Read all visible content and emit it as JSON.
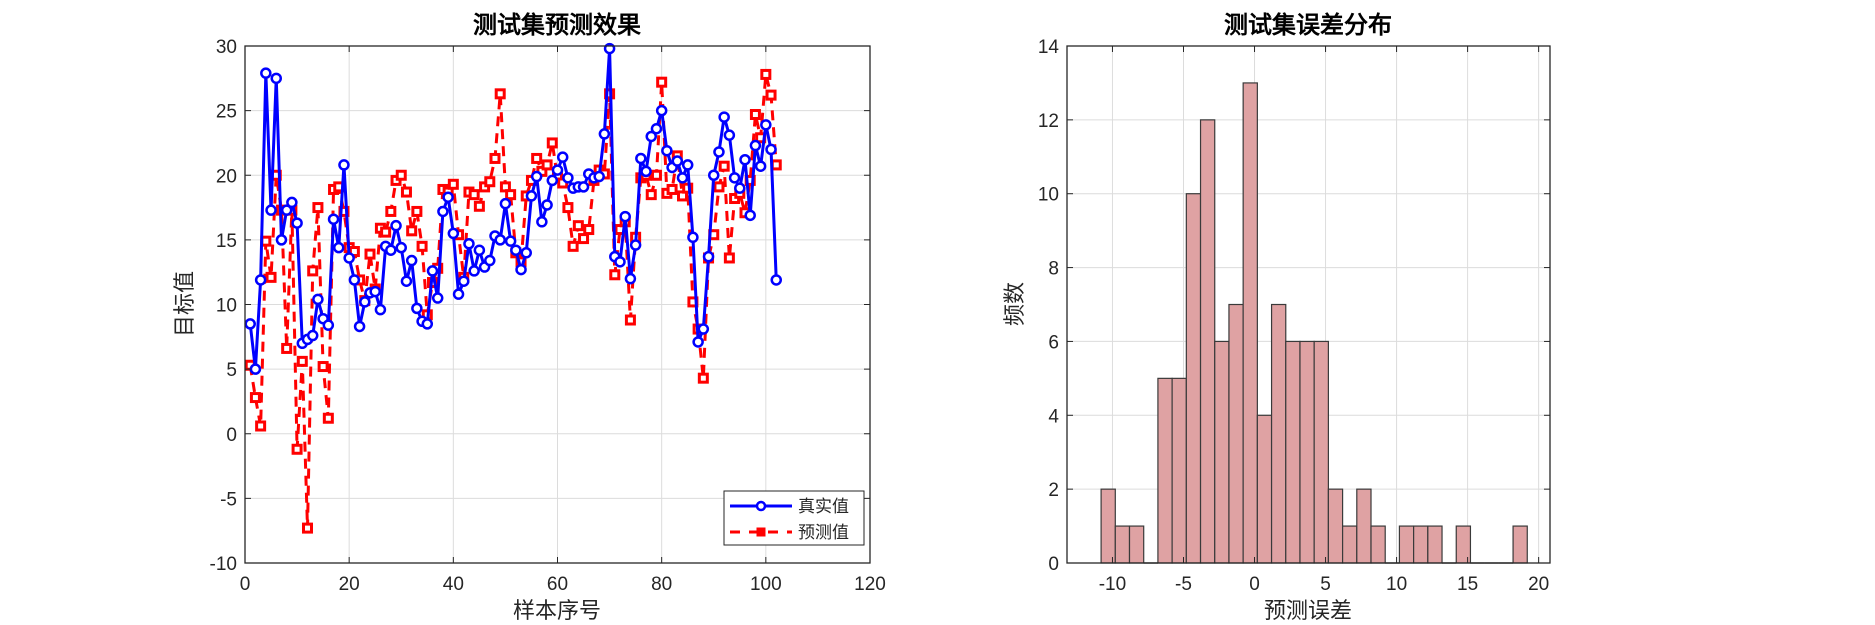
{
  "chart_data": [
    {
      "type": "line",
      "title": "测试集预测效果",
      "xlabel": "样本序号",
      "ylabel": "目标值",
      "xlim": [
        0,
        120
      ],
      "ylim": [
        -10,
        30
      ],
      "xticks": [
        0,
        20,
        40,
        60,
        80,
        100,
        120
      ],
      "yticks": [
        -10,
        -5,
        0,
        5,
        10,
        15,
        20,
        25,
        30
      ],
      "grid": true,
      "legend_position": "lower right",
      "series": [
        {
          "name": "真实值",
          "color": "#0000ff",
          "style": "solid-circle",
          "values": [
            8.5,
            5.0,
            11.9,
            27.9,
            17.3,
            27.5,
            15.0,
            17.3,
            17.9,
            16.3,
            7.0,
            7.3,
            7.6,
            10.4,
            8.9,
            8.4,
            16.6,
            14.4,
            20.8,
            13.6,
            11.9,
            8.3,
            10.2,
            10.9,
            11.0,
            9.6,
            14.5,
            14.2,
            16.1,
            14.4,
            11.8,
            13.4,
            9.7,
            8.7,
            8.5,
            12.6,
            10.5,
            17.2,
            18.3,
            15.5,
            10.8,
            11.8,
            14.7,
            12.6,
            14.2,
            12.9,
            13.4,
            15.3,
            15.0,
            17.8,
            14.9,
            14.2,
            12.7,
            14.0,
            18.4,
            19.9,
            16.4,
            17.7,
            19.6,
            20.4,
            21.4,
            19.8,
            19.0,
            19.1,
            19.1,
            20.1,
            19.8,
            19.9,
            23.2,
            29.8,
            13.7,
            13.3,
            16.8,
            12.0,
            14.6,
            21.3,
            20.3,
            23.0,
            23.6,
            25.0,
            21.9,
            20.6,
            21.1,
            19.8,
            20.8,
            15.2,
            7.1,
            8.1,
            13.7,
            20.0,
            21.8,
            24.5,
            23.1,
            19.8,
            19.0,
            21.2,
            16.9,
            22.3,
            20.7,
            23.9,
            22.0,
            11.9
          ]
        },
        {
          "name": "预测值",
          "color": "#ff0000",
          "style": "dashed-square",
          "values": [
            5.3,
            2.8,
            0.6,
            14.9,
            12.1,
            20.0,
            17.3,
            6.6,
            17.3,
            -1.2,
            5.6,
            -7.3,
            12.6,
            17.5,
            5.2,
            1.2,
            18.9,
            19.1,
            17.2,
            14.4,
            14.1,
            11.9,
            10.3,
            13.9,
            11.2,
            15.9,
            15.6,
            17.2,
            19.6,
            20.0,
            18.7,
            15.7,
            17.2,
            14.5,
            9.2,
            11.7,
            12.8,
            18.9,
            18.7,
            19.3,
            15.4,
            12.1,
            18.7,
            18.5,
            17.6,
            19.1,
            19.5,
            21.3,
            26.3,
            19.1,
            18.5,
            14.0,
            13.3,
            18.4,
            19.6,
            21.3,
            20.3,
            20.8,
            22.5,
            19.8,
            19.4,
            17.5,
            14.5,
            16.1,
            15.1,
            15.8,
            19.6,
            20.4,
            20.1,
            26.3,
            12.3,
            15.8,
            16.4,
            8.8,
            15.2,
            19.8,
            20.0,
            18.5,
            20.0,
            27.2,
            18.6,
            18.9,
            21.5,
            18.4,
            19.0,
            10.2,
            8.1,
            4.3,
            13.6,
            15.4,
            19.1,
            20.7,
            13.6,
            18.2,
            18.6,
            17.1,
            19.6,
            24.7,
            22.9,
            27.8,
            26.2,
            20.8
          ]
        }
      ]
    },
    {
      "type": "bar",
      "subtype": "histogram",
      "title": "测试集误差分布",
      "xlabel": "预测误差",
      "ylabel": "频数",
      "xlim": [
        -13.2,
        20.8
      ],
      "ylim": [
        0,
        14
      ],
      "xticks": [
        -10,
        -5,
        0,
        5,
        10,
        15,
        20
      ],
      "yticks": [
        0,
        2,
        4,
        6,
        8,
        10,
        12,
        14
      ],
      "grid": true,
      "bin_start": -10.8,
      "bin_width": 1.0,
      "face_color": "#dfa2a3",
      "counts": [
        2,
        1,
        1,
        0,
        5,
        5,
        10,
        12,
        6,
        7,
        13,
        4,
        7,
        6,
        6,
        6,
        2,
        1,
        2,
        1,
        0,
        1,
        1,
        1,
        0,
        1,
        0,
        0,
        0,
        1
      ]
    }
  ]
}
